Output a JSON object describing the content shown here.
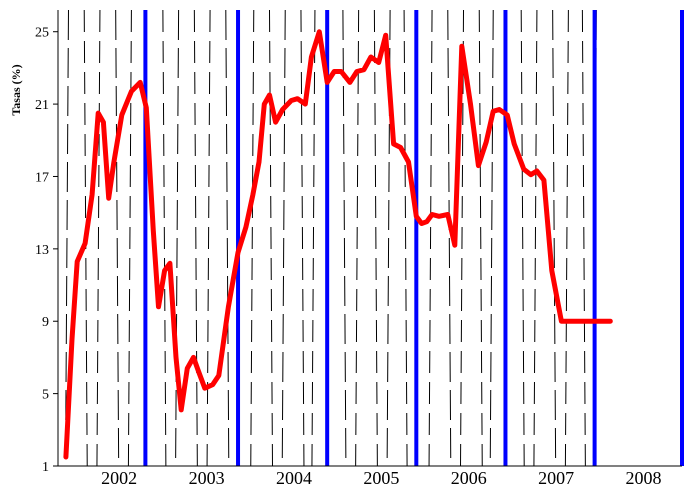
{
  "chart_data": {
    "type": "line",
    "title": "",
    "ylabel": "Tasas (%)",
    "xlabel": "",
    "ylim": [
      1,
      26.2
    ],
    "xlim": [
      2001.3,
      2008.44
    ],
    "y_ticks": [
      1,
      5,
      9,
      13,
      17,
      21,
      25
    ],
    "x_ticks": [
      {
        "label": "2002",
        "value": 2002
      },
      {
        "label": "2003",
        "value": 2003
      },
      {
        "label": "2004",
        "value": 2004
      },
      {
        "label": "2005",
        "value": 2005
      },
      {
        "label": "2006",
        "value": 2006
      },
      {
        "label": "2007",
        "value": 2007
      },
      {
        "label": "2008",
        "value": 2008
      }
    ],
    "legend": "none",
    "grid": false,
    "colors": {
      "series": "#ff0000",
      "vline_solid": "#0000ff",
      "vline_dashed": "#000000"
    },
    "series": [
      {
        "color": "#ff0000",
        "x": [
          2001.39,
          2001.46,
          2001.52,
          2001.61,
          2001.69,
          2001.76,
          2001.82,
          2001.88,
          2001.94,
          2002.03,
          2002.14,
          2002.24,
          2002.31,
          2002.39,
          2002.45,
          2002.52,
          2002.58,
          2002.65,
          2002.71,
          2002.78,
          2002.85,
          2002.91,
          2002.98,
          2003.07,
          2003.14,
          2003.25,
          2003.36,
          2003.45,
          2003.53,
          2003.6,
          2003.66,
          2003.72,
          2003.79,
          2003.87,
          2003.97,
          2004.04,
          2004.13,
          2004.2,
          2004.29,
          2004.38,
          2004.46,
          2004.54,
          2004.64,
          2004.72,
          2004.8,
          2004.88,
          2004.97,
          2005.05,
          2005.14,
          2005.22,
          2005.31,
          2005.4,
          2005.46,
          2005.52,
          2005.58,
          2005.66,
          2005.76,
          2005.84,
          2005.92,
          2006.02,
          2006.11,
          2006.2,
          2006.28,
          2006.35,
          2006.44,
          2006.52,
          2006.63,
          2006.71,
          2006.78,
          2006.86,
          2006.95,
          2007.06,
          2007.13,
          2007.21,
          2007.29,
          2007.37,
          2007.44,
          2007.53,
          2007.62
        ],
        "y": [
          1.5,
          8.0,
          12.3,
          13.3,
          16.0,
          20.5,
          20.0,
          15.8,
          17.8,
          20.4,
          21.7,
          22.2,
          20.8,
          14.0,
          9.8,
          11.8,
          12.2,
          7.0,
          4.1,
          6.4,
          7.0,
          6.2,
          5.3,
          5.5,
          6.0,
          9.8,
          12.8,
          14.2,
          16.0,
          17.8,
          21.0,
          21.5,
          20.0,
          20.7,
          21.2,
          21.3,
          21.0,
          23.6,
          25.0,
          22.2,
          22.8,
          22.8,
          22.2,
          22.8,
          22.9,
          23.6,
          23.3,
          24.8,
          18.8,
          18.6,
          17.8,
          14.8,
          14.4,
          14.5,
          14.9,
          14.8,
          14.9,
          13.2,
          24.2,
          21.0,
          17.6,
          18.9,
          20.6,
          20.7,
          20.4,
          18.8,
          17.4,
          17.1,
          17.3,
          16.8,
          11.8,
          9.0,
          9.0,
          9.0,
          9.0,
          9.0,
          9.0,
          9.0,
          9.0
        ]
      }
    ],
    "vlines_solid": [
      2002.3,
      2003.36,
      2004.38,
      2005.4,
      2006.42,
      2007.44,
      2008.44
    ],
    "vlines_dashed": [
      2001.42,
      2001.6,
      2001.78,
      2001.96,
      2002.14,
      2002.5,
      2002.68,
      2002.86,
      2003.04,
      2003.22,
      2003.54,
      2003.72,
      2003.9,
      2004.08,
      2004.24,
      2004.56,
      2004.74,
      2004.92,
      2005.1,
      2005.26,
      2005.58,
      2005.76,
      2005.94,
      2006.12,
      2006.28,
      2006.6,
      2006.78,
      2006.96,
      2007.14,
      2007.3,
      2007.46
    ]
  }
}
